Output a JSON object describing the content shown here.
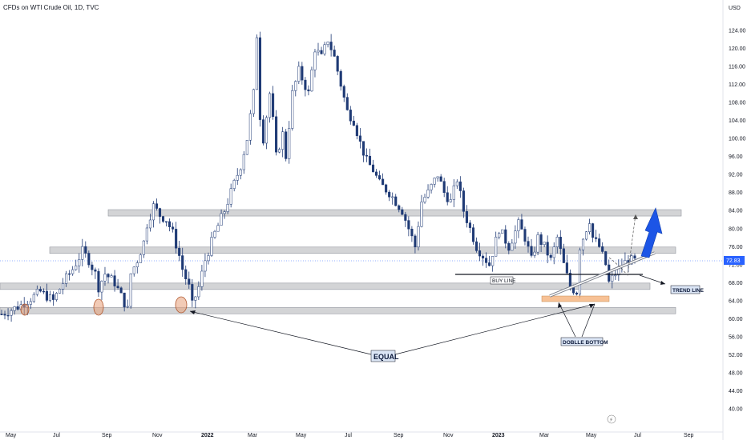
{
  "chart_data": {
    "type": "candlestick",
    "title": "CFDs on WTI Crude Oil, 1D, TVC",
    "currency": "USD",
    "last_price": "72.83",
    "y_ticks": [
      "124.00",
      "120.00",
      "116.00",
      "112.00",
      "108.00",
      "104.00",
      "100.00",
      "96.00",
      "92.00",
      "88.00",
      "84.00",
      "80.00",
      "76.00",
      "72.00",
      "68.00",
      "64.00",
      "60.00",
      "56.00",
      "52.00",
      "48.00",
      "44.00",
      "40.00"
    ],
    "x_ticks": [
      "May",
      "Jul",
      "Sep",
      "Nov",
      "2022",
      "Mar",
      "May",
      "Jul",
      "Sep",
      "Nov",
      "2023",
      "Mar",
      "May",
      "Jul",
      "Sep"
    ],
    "ylim": [
      37,
      127
    ],
    "price_path": [
      [
        0,
        61
      ],
      [
        6,
        63
      ],
      [
        12,
        66
      ],
      [
        16,
        64
      ],
      [
        19,
        68
      ],
      [
        22,
        71
      ],
      [
        25,
        75
      ],
      [
        27,
        73
      ],
      [
        29,
        70
      ],
      [
        30,
        67
      ],
      [
        32,
        70
      ],
      [
        35,
        68
      ],
      [
        37,
        65
      ],
      [
        39,
        62
      ],
      [
        40,
        70
      ],
      [
        42,
        73
      ],
      [
        44,
        77
      ],
      [
        45,
        81
      ],
      [
        47,
        85
      ],
      [
        49,
        83
      ],
      [
        51,
        82
      ],
      [
        53,
        79
      ],
      [
        55,
        74
      ],
      [
        56,
        71
      ],
      [
        58,
        67
      ],
      [
        59,
        63
      ],
      [
        61,
        67
      ],
      [
        63,
        73
      ],
      [
        66,
        79
      ],
      [
        69,
        84
      ],
      [
        72,
        90
      ],
      [
        74,
        94
      ],
      [
        76,
        100
      ],
      [
        78,
        110
      ],
      [
        79,
        123
      ],
      [
        80,
        105
      ],
      [
        81,
        100
      ],
      [
        83,
        110
      ],
      [
        84,
        104
      ],
      [
        85,
        96
      ],
      [
        87,
        101
      ],
      [
        88,
        96
      ],
      [
        90,
        110
      ],
      [
        92,
        115
      ],
      [
        95,
        110
      ],
      [
        97,
        120
      ],
      [
        99,
        118
      ],
      [
        101,
        122
      ],
      [
        103,
        118
      ],
      [
        105,
        112
      ],
      [
        107,
        106
      ],
      [
        109,
        104
      ],
      [
        111,
        99
      ],
      [
        113,
        95
      ],
      [
        115,
        93
      ],
      [
        117,
        90
      ],
      [
        120,
        88
      ],
      [
        122,
        86
      ],
      [
        124,
        84
      ],
      [
        126,
        80
      ],
      [
        128,
        76
      ],
      [
        130,
        86
      ],
      [
        132,
        88
      ],
      [
        135,
        92
      ],
      [
        137,
        88
      ],
      [
        139,
        86
      ],
      [
        141,
        91
      ],
      [
        143,
        84
      ],
      [
        145,
        80
      ],
      [
        147,
        76
      ],
      [
        149,
        74
      ],
      [
        151,
        72
      ],
      [
        154,
        80
      ],
      [
        157,
        76
      ],
      [
        160,
        81
      ],
      [
        162,
        78
      ],
      [
        164,
        73
      ],
      [
        166,
        78
      ],
      [
        168,
        76
      ],
      [
        170,
        73
      ],
      [
        172,
        78
      ],
      [
        174,
        72
      ],
      [
        176,
        67
      ],
      [
        178,
        66
      ],
      [
        179,
        76
      ],
      [
        182,
        82
      ],
      [
        183,
        78
      ],
      [
        185,
        76
      ],
      [
        187,
        72
      ],
      [
        188,
        68
      ],
      [
        190,
        70
      ],
      [
        192,
        72
      ],
      [
        194,
        73
      ],
      [
        196,
        72.8
      ]
    ],
    "xlim": [
      0,
      214
    ],
    "zones": [
      {
        "name": "zone-84",
        "price": 83.5,
        "start": 37
      },
      {
        "name": "zone-75",
        "price": 75.2,
        "start": 17
      },
      {
        "name": "zone-67",
        "price": 67.2,
        "start": 0
      },
      {
        "name": "zone-62",
        "price": 61.8,
        "start": 0
      }
    ],
    "annotations": {
      "buy_line": "BUY LINE",
      "trend_line": "TREND LINE",
      "double_bottom": "DOBLLE BOTTOM",
      "equal": "EQUAL"
    },
    "colors": {
      "candle": "#1f3a75",
      "zone_fill": "#d3d4d6",
      "zone_stroke": "#9598a1",
      "highlight": "#f5b27a",
      "circle": "#e8a07a",
      "arrow": "#1c55e6",
      "price_tag": "#2962ff",
      "label_bg": "#dbe5f5"
    }
  }
}
